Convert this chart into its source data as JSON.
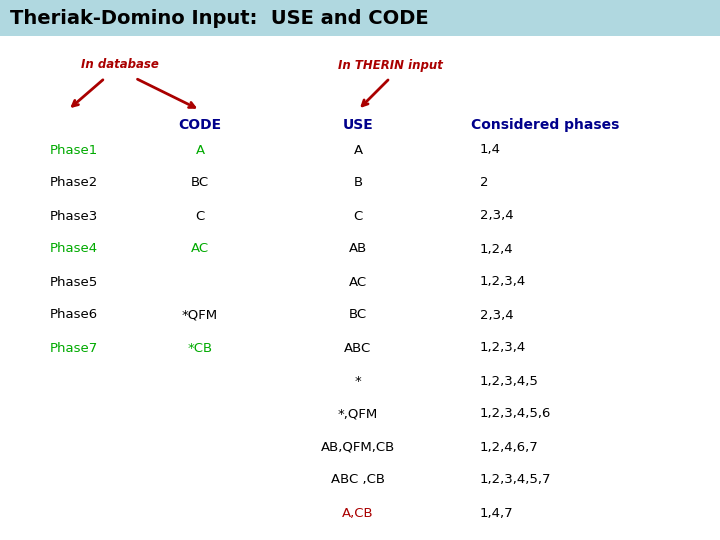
{
  "title": "Theriak-Domino Input:  USE and CODE",
  "title_bg": "#b0d8e0",
  "title_color": "#000000",
  "title_fontsize": 14,
  "bg_color": "#ffffff",
  "label_database": "In database",
  "label_therin": "In THERIN input",
  "label_color": "#aa0000",
  "phases": [
    "Phase1",
    "Phase2",
    "Phase3",
    "Phase4",
    "Phase5",
    "Phase6",
    "Phase7"
  ],
  "phase_colors": [
    "#00aa00",
    "#000000",
    "#000000",
    "#00aa00",
    "#000000",
    "#000000",
    "#00aa00"
  ],
  "codes": [
    "A",
    "BC",
    "C",
    "AC",
    "",
    "*QFM",
    "*CB"
  ],
  "code_colors": [
    "#00aa00",
    "#000000",
    "#000000",
    "#00aa00",
    "#000000",
    "#000000",
    "#00aa00"
  ],
  "use_rows": [
    "A",
    "B",
    "C",
    "AB",
    "AC",
    "BC",
    "ABC",
    "*",
    "*,QFM",
    "AB,QFM,CB",
    "ABC ,CB",
    "A,CB"
  ],
  "use_colors": [
    "#000000",
    "#000000",
    "#000000",
    "#000000",
    "#000000",
    "#000000",
    "#000000",
    "#000000",
    "#000000",
    "#000000",
    "#000000",
    "#aa0000"
  ],
  "considered_rows": [
    "1,4",
    "2",
    "2,3,4",
    "1,2,4",
    "1,2,3,4",
    "2,3,4",
    "1,2,3,4",
    "1,2,3,4,5",
    "1,2,3,4,5,6",
    "1,2,4,6,7",
    "1,2,3,4,5,7",
    "1,4,7"
  ]
}
